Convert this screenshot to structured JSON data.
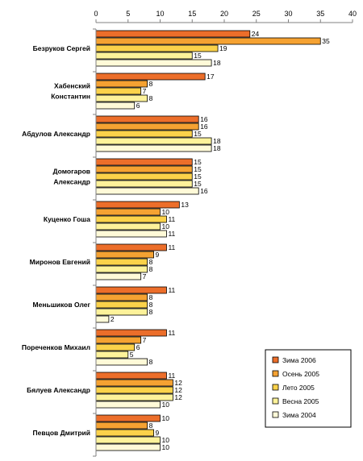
{
  "chart_data": {
    "type": "bar",
    "orientation": "horizontal",
    "xlim": [
      0,
      40
    ],
    "ticks": [
      "0",
      "5",
      "10",
      "15",
      "20",
      "25",
      "30",
      "35",
      "40"
    ],
    "axis_position": "top",
    "grid": false,
    "legend_position": "bottom-right",
    "categories": [
      [
        "Безруков Сергей"
      ],
      [
        "Хабенский",
        "Константин"
      ],
      [
        "Абдулов Александр"
      ],
      [
        "Домогаров",
        "Александр"
      ],
      [
        "Куценко Гоша"
      ],
      [
        "Миронов Евгений"
      ],
      [
        "Меньшиков Олег"
      ],
      [
        "Пореченков Михаил"
      ],
      [
        "Бялуев Александр"
      ],
      [
        "Певцов Дмитрий"
      ]
    ],
    "series": [
      {
        "name": "Зима 2006",
        "color": "#ec6e2a",
        "values": [
          24,
          17,
          16,
          15,
          13,
          11,
          11,
          11,
          11,
          10
        ]
      },
      {
        "name": "Осень 2005",
        "color": "#f5a232",
        "values": [
          35,
          8,
          16,
          15,
          10,
          9,
          8,
          7,
          12,
          8
        ]
      },
      {
        "name": "Лето 2005",
        "color": "#fbd24a",
        "values": [
          19,
          7,
          15,
          15,
          11,
          8,
          8,
          6,
          12,
          9
        ]
      },
      {
        "name": "Весна 2005",
        "color": "#fdf29a",
        "values": [
          15,
          8,
          18,
          15,
          10,
          8,
          8,
          5,
          12,
          10
        ]
      },
      {
        "name": "Зима 2004",
        "color": "#fffad8",
        "values": [
          18,
          6,
          18,
          16,
          11,
          7,
          2,
          8,
          10,
          10
        ]
      }
    ]
  }
}
